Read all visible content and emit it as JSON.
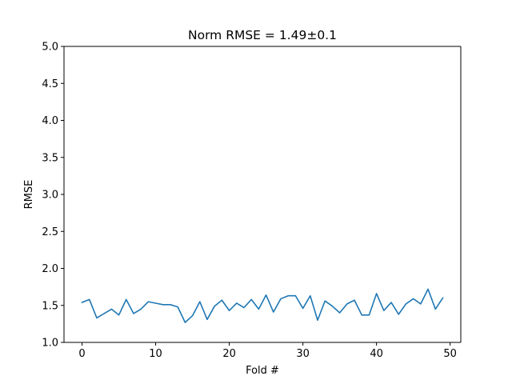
{
  "chart_data": {
    "type": "line",
    "title": "Norm RMSE = 1.49±0.1",
    "xlabel": "Fold #",
    "ylabel": "RMSE",
    "xlim": [
      -2.45,
      51.45
    ],
    "ylim": [
      1.0,
      5.0
    ],
    "xticks": [
      0,
      10,
      20,
      30,
      40,
      50
    ],
    "yticks": [
      "1.0",
      "1.5",
      "2.0",
      "2.5",
      "3.0",
      "3.5",
      "4.0",
      "4.5",
      "5.0"
    ],
    "grid": false,
    "series": [
      {
        "color": "#1f77b4",
        "x": [
          0,
          1,
          2,
          3,
          4,
          5,
          6,
          7,
          8,
          9,
          10,
          11,
          12,
          13,
          14,
          15,
          16,
          17,
          18,
          19,
          20,
          21,
          22,
          23,
          24,
          25,
          26,
          27,
          28,
          29,
          30,
          31,
          32,
          33,
          34,
          35,
          36,
          37,
          38,
          39,
          40,
          41,
          42,
          43,
          44,
          45,
          46,
          47,
          48,
          49
        ],
        "y": [
          1.54,
          1.58,
          1.33,
          1.39,
          1.45,
          1.37,
          1.58,
          1.39,
          1.45,
          1.55,
          1.53,
          1.51,
          1.51,
          1.48,
          1.27,
          1.36,
          1.55,
          1.31,
          1.49,
          1.57,
          1.43,
          1.53,
          1.47,
          1.58,
          1.45,
          1.64,
          1.41,
          1.59,
          1.63,
          1.63,
          1.46,
          1.63,
          1.3,
          1.56,
          1.49,
          1.4,
          1.52,
          1.57,
          1.37,
          1.37,
          1.66,
          1.43,
          1.54,
          1.38,
          1.52,
          1.59,
          1.52,
          1.72,
          1.45,
          1.6
        ]
      }
    ]
  }
}
